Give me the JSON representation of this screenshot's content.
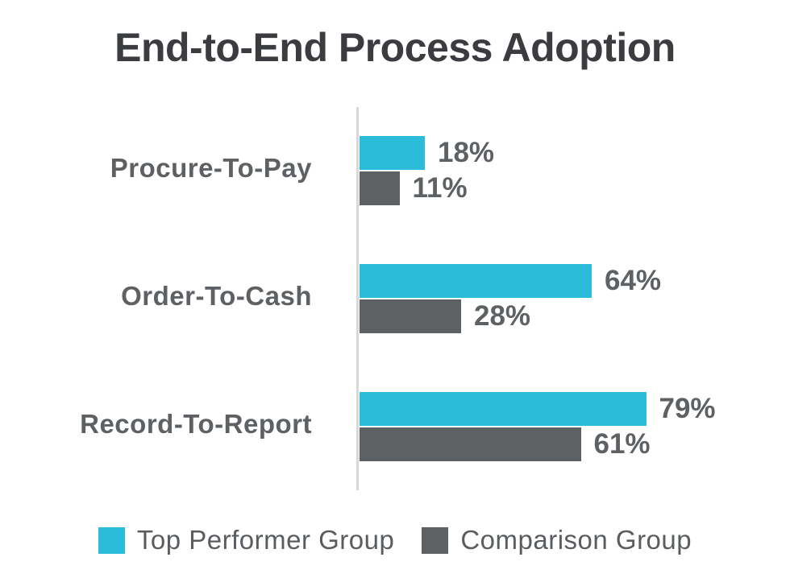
{
  "title": "End-to-End Process Adoption",
  "colors": {
    "top_performer": "#2abcd8",
    "comparison": "#5e6164",
    "axis_line": "#d8d8d8",
    "title_text": "#3a3c3f",
    "label_text": "#5e6164",
    "legend_text": "#5a5d60",
    "background": "#ffffff"
  },
  "chart_data": {
    "type": "bar",
    "orientation": "horizontal",
    "title": "End-to-End Process Adoption",
    "categories": [
      "Procure-To-Pay",
      "Order-To-Cash",
      "Record-To-Report"
    ],
    "series": [
      {
        "name": "Top Performer Group",
        "color": "#2abcd8",
        "values": [
          18,
          64,
          79
        ]
      },
      {
        "name": "Comparison Group",
        "color": "#5e6164",
        "values": [
          11,
          28,
          61
        ]
      }
    ],
    "value_labels": [
      [
        "18%",
        "11%"
      ],
      [
        "64%",
        "28%"
      ],
      [
        "79%",
        "61%"
      ]
    ],
    "xlim": [
      0,
      100
    ],
    "grid": false,
    "legend_position": "bottom"
  },
  "legend": {
    "items": [
      {
        "label": "Top Performer Group",
        "color": "#2abcd8"
      },
      {
        "label": "Comparison Group",
        "color": "#5e6164"
      }
    ]
  }
}
